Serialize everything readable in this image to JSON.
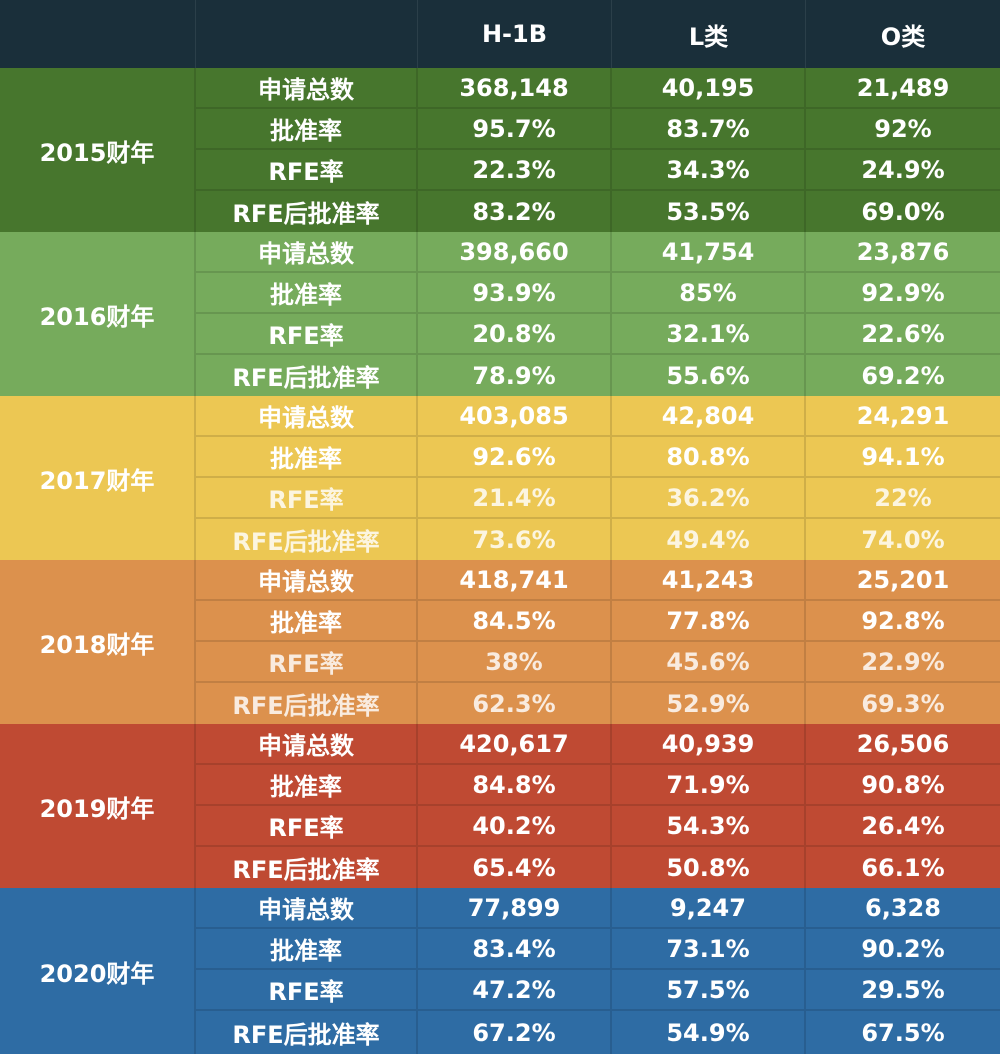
{
  "header": {
    "year_col": "",
    "metric_col": "",
    "h1b": "H-1B",
    "l": "L类",
    "o": "O类"
  },
  "colors": {
    "header_bg": "#1a2f3a",
    "fy2015": "#47762d",
    "fy2016": "#76ab5c",
    "fy2017": "#ecc753",
    "fy2018": "#dc914d",
    "fy2019": "#bf4a33",
    "fy2020": "#2e6ca4"
  },
  "years": [
    {
      "label": "2015财年",
      "rows": [
        {
          "metric": "申请总数",
          "h1b": "368,148",
          "l": "40,195",
          "o": "21,489"
        },
        {
          "metric": "批准率",
          "h1b": "95.7%",
          "l": "83.7%",
          "o": "92%"
        },
        {
          "metric": "RFE率",
          "h1b": "22.3%",
          "l": "34.3%",
          "o": "24.9%"
        },
        {
          "metric": "RFE后批准率",
          "h1b": "83.2%",
          "l": "53.5%",
          "o": "69.0%"
        }
      ]
    },
    {
      "label": "2016财年",
      "rows": [
        {
          "metric": "申请总数",
          "h1b": "398,660",
          "l": "41,754",
          "o": "23,876"
        },
        {
          "metric": "批准率",
          "h1b": "93.9%",
          "l": "85%",
          "o": "92.9%"
        },
        {
          "metric": "RFE率",
          "h1b": "20.8%",
          "l": "32.1%",
          "o": "22.6%"
        },
        {
          "metric": "RFE后批准率",
          "h1b": "78.9%",
          "l": "55.6%",
          "o": "69.2%"
        }
      ]
    },
    {
      "label": "2017财年",
      "rows": [
        {
          "metric": "申请总数",
          "h1b": "403,085",
          "l": "42,804",
          "o": "24,291"
        },
        {
          "metric": "批准率",
          "h1b": "92.6%",
          "l": "80.8%",
          "o": "94.1%"
        },
        {
          "metric": "RFE率",
          "h1b": "21.4%",
          "l": "36.2%",
          "o": "22%"
        },
        {
          "metric": "RFE后批准率",
          "h1b": "73.6%",
          "l": "49.4%",
          "o": "74.0%"
        }
      ]
    },
    {
      "label": "2018财年",
      "rows": [
        {
          "metric": "申请总数",
          "h1b": "418,741",
          "l": "41,243",
          "o": "25,201"
        },
        {
          "metric": "批准率",
          "h1b": "84.5%",
          "l": "77.8%",
          "o": "92.8%"
        },
        {
          "metric": "RFE率",
          "h1b": "38%",
          "l": "45.6%",
          "o": "22.9%"
        },
        {
          "metric": "RFE后批准率",
          "h1b": "62.3%",
          "l": "52.9%",
          "o": "69.3%"
        }
      ]
    },
    {
      "label": "2019财年",
      "rows": [
        {
          "metric": "申请总数",
          "h1b": "420,617",
          "l": "40,939",
          "o": "26,506"
        },
        {
          "metric": "批准率",
          "h1b": "84.8%",
          "l": "71.9%",
          "o": "90.8%"
        },
        {
          "metric": "RFE率",
          "h1b": "40.2%",
          "l": "54.3%",
          "o": "26.4%"
        },
        {
          "metric": "RFE后批准率",
          "h1b": "65.4%",
          "l": "50.8%",
          "o": "66.1%"
        }
      ]
    },
    {
      "label": "2020财年",
      "rows": [
        {
          "metric": "申请总数",
          "h1b": "77,899",
          "l": "9,247",
          "o": "6,328"
        },
        {
          "metric": "批准率",
          "h1b": "83.4%",
          "l": "73.1%",
          "o": "90.2%"
        },
        {
          "metric": "RFE率",
          "h1b": "47.2%",
          "l": "57.5%",
          "o": "29.5%"
        },
        {
          "metric": "RFE后批准率",
          "h1b": "67.2%",
          "l": "54.9%",
          "o": "67.5%"
        }
      ]
    }
  ]
}
